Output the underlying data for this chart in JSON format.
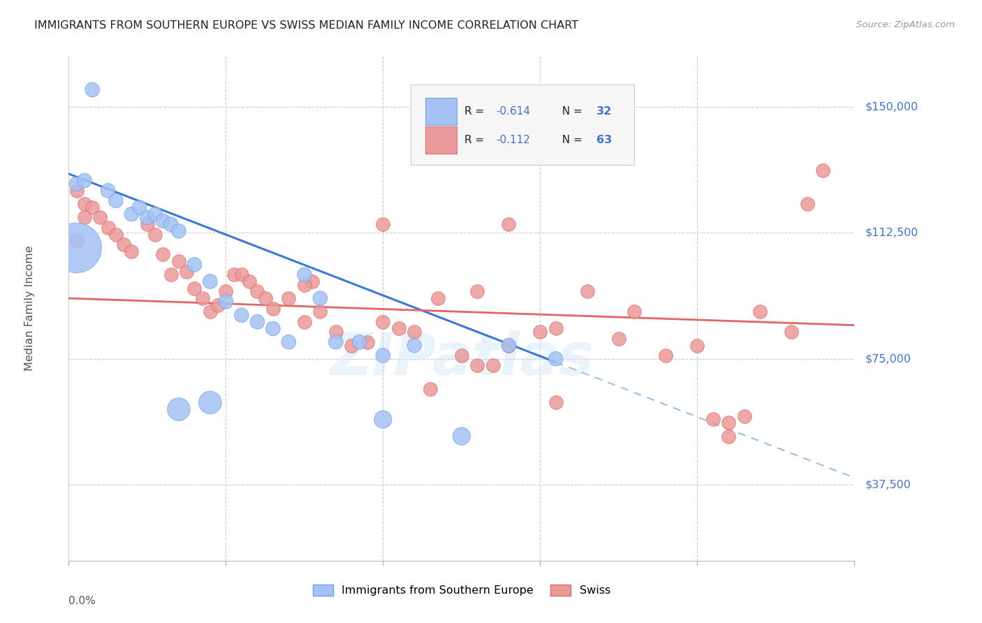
{
  "title": "IMMIGRANTS FROM SOUTHERN EUROPE VS SWISS MEDIAN FAMILY INCOME CORRELATION CHART",
  "source": "Source: ZipAtlas.com",
  "ylabel": "Median Family Income",
  "yticks": [
    37500,
    75000,
    112500,
    150000
  ],
  "ytick_labels": [
    "$37,500",
    "$75,000",
    "$112,500",
    "$150,000"
  ],
  "xmin": 0.0,
  "xmax": 0.5,
  "ymin": 15000,
  "ymax": 165000,
  "legend_r1": "-0.614",
  "legend_n1": "32",
  "legend_r2": "-0.112",
  "legend_n2": "63",
  "color_blue_fill": "#a4c2f4",
  "color_pink_fill": "#ea9999",
  "color_blue_edge": "#6d9eeb",
  "color_pink_edge": "#e06666",
  "color_blue_line": "#3c78d8",
  "color_pink_line": "#e06666",
  "color_dashed": "#a0c4e8",
  "color_title": "#222222",
  "color_source": "#999999",
  "color_ytick_label": "#4472c4",
  "color_legend_r": "#222222",
  "color_legend_n": "#4472c4",
  "watermark": "ZIPatlas",
  "legend_label_blue": "Immigrants from Southern Europe",
  "legend_label_pink": "Swiss",
  "blue_line_x0": 0.0,
  "blue_line_y0": 130000,
  "blue_line_x1": 0.31,
  "blue_line_y1": 74000,
  "pink_line_x0": 0.0,
  "pink_line_y0": 93000,
  "pink_line_x1": 0.5,
  "pink_line_y1": 85000,
  "blue_x": [
    0.005,
    0.01,
    0.015,
    0.025,
    0.03,
    0.04,
    0.045,
    0.05,
    0.055,
    0.06,
    0.065,
    0.07,
    0.08,
    0.09,
    0.1,
    0.11,
    0.12,
    0.13,
    0.14,
    0.15,
    0.16,
    0.17,
    0.185,
    0.2,
    0.22,
    0.25,
    0.005,
    0.07,
    0.09,
    0.2,
    0.28,
    0.31
  ],
  "blue_y": [
    127000,
    128000,
    155000,
    125000,
    122000,
    118000,
    120000,
    117000,
    118000,
    116000,
    115000,
    113000,
    103000,
    98000,
    92000,
    88000,
    86000,
    84000,
    80000,
    100000,
    93000,
    80000,
    80000,
    76000,
    79000,
    52000,
    108000,
    60000,
    62000,
    57000,
    79000,
    75000
  ],
  "blue_size_base": 220,
  "blue_sizes": [
    1,
    1,
    1,
    1,
    1,
    1,
    1,
    1,
    1,
    1,
    1,
    1,
    1,
    1,
    1,
    1,
    1,
    1,
    1,
    1,
    1,
    1,
    1,
    1,
    1,
    1.5,
    12,
    2.5,
    2.5,
    1.5,
    1,
    1
  ],
  "pink_x": [
    0.005,
    0.01,
    0.015,
    0.02,
    0.025,
    0.03,
    0.035,
    0.04,
    0.05,
    0.055,
    0.06,
    0.065,
    0.07,
    0.075,
    0.08,
    0.085,
    0.09,
    0.095,
    0.1,
    0.105,
    0.11,
    0.115,
    0.12,
    0.125,
    0.13,
    0.14,
    0.15,
    0.155,
    0.16,
    0.17,
    0.18,
    0.19,
    0.2,
    0.21,
    0.22,
    0.235,
    0.25,
    0.26,
    0.27,
    0.28,
    0.3,
    0.31,
    0.33,
    0.36,
    0.38,
    0.4,
    0.42,
    0.43,
    0.44,
    0.46,
    0.47,
    0.48,
    0.005,
    0.01,
    0.15,
    0.2,
    0.28,
    0.35,
    0.41,
    0.23,
    0.31,
    0.42,
    0.26
  ],
  "pink_y": [
    125000,
    121000,
    120000,
    117000,
    114000,
    112000,
    109000,
    107000,
    115000,
    112000,
    106000,
    100000,
    104000,
    101000,
    96000,
    93000,
    89000,
    91000,
    95000,
    100000,
    100000,
    98000,
    95000,
    93000,
    90000,
    93000,
    86000,
    98000,
    89000,
    83000,
    79000,
    80000,
    86000,
    84000,
    83000,
    93000,
    76000,
    73000,
    73000,
    79000,
    83000,
    84000,
    95000,
    89000,
    76000,
    79000,
    56000,
    58000,
    89000,
    83000,
    121000,
    131000,
    110000,
    117000,
    97000,
    115000,
    115000,
    81000,
    57000,
    66000,
    62000,
    52000,
    95000
  ]
}
